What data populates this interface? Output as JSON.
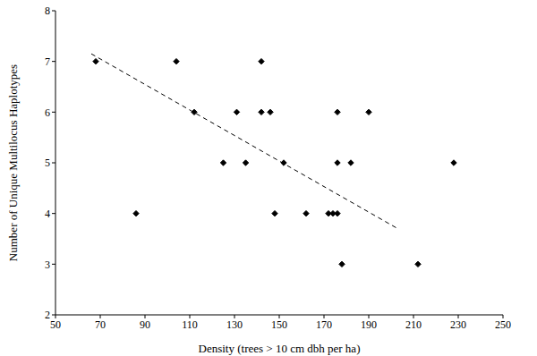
{
  "chart_data": {
    "type": "scatter",
    "x_label": "Density (trees > 10 cm dbh per ha)",
    "y_label": "Number of Unique Multilocus Haplotypes",
    "xlim": [
      50,
      250
    ],
    "xticks": [
      50,
      70,
      90,
      110,
      130,
      150,
      170,
      190,
      210,
      230,
      250
    ],
    "ylim": [
      2,
      8
    ],
    "yticks": [
      2,
      3,
      4,
      5,
      6,
      7,
      8
    ],
    "grid": false,
    "series": [
      {
        "type": "scatter",
        "color": "#000000",
        "marker": "diamond",
        "x": [
          68,
          86,
          104,
          112,
          125,
          131,
          135,
          142,
          142,
          146,
          148,
          152,
          162,
          172,
          174,
          176,
          176,
          176,
          178,
          182,
          190,
          212,
          228
        ],
        "values": [
          7,
          4,
          7,
          6,
          5,
          6,
          5,
          7,
          6,
          6,
          4,
          5,
          4,
          4,
          4,
          6,
          5,
          4,
          3,
          5,
          6,
          3,
          5
        ]
      },
      {
        "type": "line",
        "color": "#000000",
        "line_style": "dashed",
        "x": [
          66,
          203
        ],
        "values": [
          7.15,
          3.7
        ]
      }
    ]
  }
}
